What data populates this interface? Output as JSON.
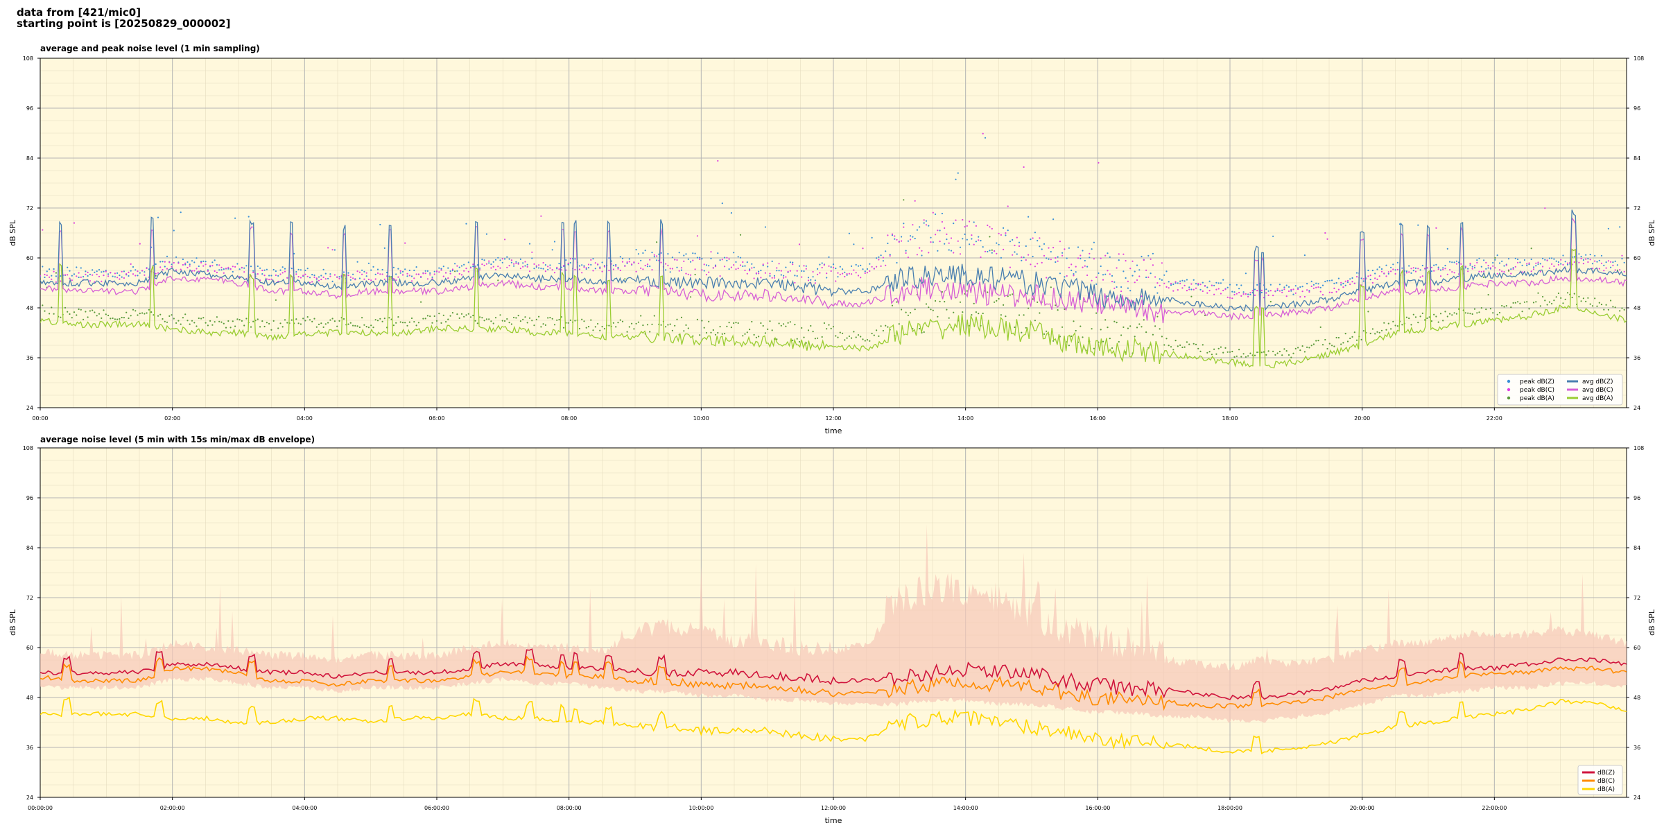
{
  "header": {
    "line1": "data from [421/mic0]",
    "line2": "starting point is [20250829_000002]"
  },
  "chart_data": [
    {
      "type": "line",
      "title": "average and peak noise level (1 min sampling)",
      "xlabel": "time",
      "ylabel": "dB SPL",
      "ylabel_right": "dB SPL",
      "ylim": [
        24,
        108
      ],
      "yticks": [
        24,
        36,
        48,
        60,
        72,
        84,
        96,
        108
      ],
      "xlim_hours": [
        0,
        24
      ],
      "xtick_labels": [
        "00:00",
        "02:00",
        "04:00",
        "06:00",
        "08:00",
        "10:00",
        "12:00",
        "14:00",
        "16:00",
        "18:00",
        "20:00",
        "22:00"
      ],
      "grid": true,
      "legend": "bottom-right",
      "legend_entries": [
        "peak dB(Z)",
        "peak dB(C)",
        "peak dB(A)",
        "avg dB(Z)",
        "avg dB(C)",
        "avg dB(A)"
      ],
      "colors": {
        "Z": "#4a7fb0",
        "C": "#d65fd6",
        "A": "#9acd32",
        "peak_Z": "#3a8fd8",
        "peak_C": "#e040e0",
        "peak_A": "#5a9a3a"
      },
      "x_hours": [
        0,
        0.5,
        1,
        1.5,
        2,
        2.5,
        3,
        3.5,
        4,
        4.5,
        5,
        5.5,
        6,
        6.5,
        7,
        7.5,
        8,
        8.5,
        9,
        9.5,
        10,
        10.5,
        11,
        11.5,
        12,
        12.5,
        13,
        13.5,
        14,
        14.5,
        15,
        15.5,
        16,
        16.5,
        17,
        17.5,
        18,
        18.5,
        19,
        19.5,
        20,
        20.5,
        21,
        21.5,
        22,
        22.5,
        23,
        23.5,
        24
      ],
      "series": [
        {
          "name": "avg dB(Z)",
          "values": [
            54,
            54,
            54,
            54,
            57,
            56,
            55,
            54,
            54,
            53,
            54,
            54,
            54,
            55,
            56,
            55,
            55,
            54,
            55,
            54,
            54,
            54,
            54,
            53,
            52,
            52,
            55,
            56,
            56,
            55,
            54,
            53,
            51,
            50,
            50,
            49,
            48,
            48,
            49,
            50,
            52,
            54,
            54,
            55,
            56,
            56,
            57,
            57,
            56
          ]
        },
        {
          "name": "avg dB(C)",
          "values": [
            53,
            52,
            52,
            52,
            55,
            55,
            54,
            52,
            52,
            51,
            52,
            52,
            52,
            53,
            54,
            53,
            53,
            52,
            52,
            52,
            51,
            51,
            51,
            50,
            49,
            49,
            52,
            53,
            52,
            51,
            51,
            50,
            49,
            48,
            47,
            47,
            46,
            46,
            47,
            48,
            50,
            52,
            52,
            53,
            54,
            54,
            55,
            55,
            54
          ]
        },
        {
          "name": "avg dB(A)",
          "values": [
            45,
            44,
            44,
            44,
            43,
            42,
            42,
            41,
            42,
            42,
            42,
            42,
            43,
            43,
            43,
            42,
            42,
            41,
            41,
            41,
            40,
            40,
            40,
            39,
            39,
            38,
            42,
            43,
            44,
            43,
            42,
            40,
            38,
            38,
            37,
            36,
            35,
            34,
            35,
            37,
            39,
            42,
            43,
            44,
            45,
            46,
            48,
            47,
            45
          ]
        },
        {
          "name": "peak dB(Z)",
          "values": [
            56,
            56,
            56,
            56,
            59,
            58,
            57,
            56,
            56,
            55,
            56,
            56,
            56,
            58,
            59,
            58,
            58,
            58,
            59,
            58,
            58,
            58,
            57,
            56,
            56,
            57,
            62,
            64,
            64,
            62,
            60,
            58,
            56,
            55,
            54,
            53,
            52,
            52,
            52,
            53,
            55,
            57,
            57,
            58,
            58,
            58,
            59,
            59,
            58
          ]
        },
        {
          "name": "peak dB(C)",
          "values": [
            55,
            55,
            55,
            55,
            58,
            57,
            56,
            55,
            55,
            54,
            55,
            55,
            55,
            57,
            58,
            57,
            57,
            57,
            58,
            57,
            57,
            57,
            56,
            55,
            55,
            56,
            61,
            63,
            63,
            61,
            59,
            57,
            55,
            54,
            53,
            52,
            51,
            51,
            51,
            52,
            54,
            56,
            56,
            57,
            57,
            57,
            58,
            58,
            57
          ]
        },
        {
          "name": "peak dB(A)",
          "values": [
            47,
            46,
            46,
            46,
            45,
            44,
            44,
            43,
            44,
            44,
            44,
            44,
            45,
            45,
            45,
            44,
            44,
            43,
            43,
            43,
            42,
            42,
            42,
            41,
            41,
            40,
            44,
            45,
            46,
            45,
            44,
            42,
            40,
            40,
            39,
            38,
            37,
            36,
            37,
            39,
            41,
            44,
            45,
            46,
            47,
            48,
            50,
            49,
            47
          ]
        }
      ]
    },
    {
      "type": "line",
      "title": "average noise level (5 min with 15s min/max dB envelope)",
      "xlabel": "time",
      "ylabel": "dB SPL",
      "ylabel_right": "dB SPL",
      "ylim": [
        24,
        108
      ],
      "yticks": [
        24,
        36,
        48,
        60,
        72,
        84,
        96,
        108
      ],
      "xlim_hours": [
        0,
        24
      ],
      "xtick_labels": [
        "00:00:00",
        "02:00:00",
        "04:00:00",
        "06:00:00",
        "08:00:00",
        "10:00:00",
        "12:00:00",
        "14:00:00",
        "16:00:00",
        "18:00:00",
        "20:00:00",
        "22:00:00"
      ],
      "grid": true,
      "legend": "bottom-right",
      "legend_entries": [
        "dB(Z)",
        "dB(C)",
        "dB(A)"
      ],
      "colors": {
        "Z": "#d0143c",
        "C": "#ff8c00",
        "A": "#ffd700",
        "envelope": "#f7c8b8"
      },
      "x_hours": [
        0,
        0.5,
        1,
        1.5,
        2,
        2.5,
        3,
        3.5,
        4,
        4.5,
        5,
        5.5,
        6,
        6.5,
        7,
        7.5,
        8,
        8.5,
        9,
        9.5,
        10,
        10.5,
        11,
        11.5,
        12,
        12.5,
        13,
        13.5,
        14,
        14.5,
        15,
        15.5,
        16,
        16.5,
        17,
        17.5,
        18,
        18.5,
        19,
        19.5,
        20,
        20.5,
        21,
        21.5,
        22,
        22.5,
        23,
        23.5,
        24
      ],
      "series": [
        {
          "name": "dB(Z)",
          "values": [
            54,
            54,
            54,
            54,
            56,
            56,
            55,
            54,
            54,
            53,
            54,
            54,
            54,
            55,
            56,
            56,
            55,
            55,
            54,
            54,
            54,
            54,
            53,
            53,
            52,
            52,
            53,
            54,
            55,
            54,
            54,
            52,
            51,
            50,
            50,
            49,
            48,
            48,
            49,
            50,
            52,
            53,
            54,
            55,
            55,
            56,
            57,
            57,
            56
          ]
        },
        {
          "name": "dB(C)",
          "values": [
            53,
            52,
            52,
            52,
            55,
            55,
            54,
            52,
            52,
            51,
            52,
            52,
            52,
            53,
            54,
            54,
            53,
            53,
            52,
            52,
            51,
            51,
            51,
            50,
            49,
            49,
            50,
            51,
            52,
            51,
            51,
            49,
            48,
            47,
            47,
            46,
            46,
            46,
            47,
            48,
            50,
            51,
            52,
            53,
            54,
            54,
            55,
            55,
            54
          ]
        },
        {
          "name": "dB(A)",
          "values": [
            44,
            44,
            44,
            44,
            43,
            43,
            42,
            42,
            43,
            43,
            42,
            43,
            43,
            44,
            43,
            43,
            42,
            42,
            41,
            41,
            40,
            40,
            40,
            39,
            38,
            38,
            42,
            43,
            43,
            42,
            41,
            40,
            38,
            37,
            37,
            36,
            35,
            35,
            36,
            37,
            39,
            41,
            42,
            43,
            44,
            45,
            47,
            47,
            45
          ]
        },
        {
          "name": "envelope max",
          "values": [
            58,
            57,
            57,
            57,
            60,
            59,
            58,
            57,
            57,
            56,
            57,
            57,
            57,
            59,
            60,
            59,
            59,
            58,
            62,
            63,
            62,
            60,
            59,
            58,
            58,
            60,
            68,
            70,
            70,
            68,
            64,
            60,
            58,
            57,
            56,
            55,
            54,
            56,
            55,
            56,
            58,
            60,
            60,
            62,
            62,
            62,
            63,
            62,
            60
          ]
        },
        {
          "name": "envelope min",
          "values": [
            51,
            51,
            51,
            51,
            53,
            53,
            52,
            51,
            51,
            50,
            51,
            51,
            51,
            52,
            53,
            52,
            52,
            51,
            50,
            50,
            49,
            49,
            48,
            48,
            47,
            47,
            47,
            48,
            48,
            47,
            47,
            46,
            45,
            45,
            44,
            44,
            43,
            43,
            44,
            45,
            47,
            49,
            49,
            50,
            51,
            51,
            52,
            52,
            51
          ]
        }
      ]
    }
  ]
}
